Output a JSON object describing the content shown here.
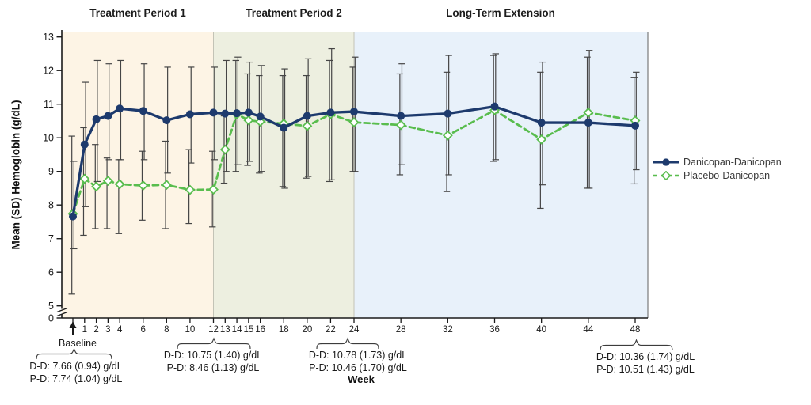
{
  "figure": {
    "regions": [
      {
        "label": "Treatment Period 1",
        "start_week": null,
        "end_week": 12,
        "fill": "#fdf4e5"
      },
      {
        "label": "Treatment Period 2",
        "start_week": 12,
        "end_week": 24,
        "fill": "#edefe0"
      },
      {
        "label": "Long-Term Extension",
        "start_week": 24,
        "end_week": null,
        "fill": "#e8f1fa"
      }
    ],
    "y_axis": {
      "title": "Mean (SD) Hemoglobin (g/dL)",
      "ticks": [
        0,
        5,
        6,
        7,
        8,
        9,
        10,
        11,
        12,
        13
      ],
      "has_break": true
    },
    "x_axis": {
      "title": "Week",
      "baseline_label": "Baseline"
    },
    "legend": {
      "items": [
        {
          "label": "Danicopan-Danicopan",
          "color": "#1d3a6d",
          "marker": "filled-circle",
          "line": "solid"
        },
        {
          "label": "Placebo-Danicopan",
          "color": "#59bd4e",
          "marker": "open-diamond",
          "line": "dashed"
        }
      ]
    },
    "annotations": [
      {
        "id": "baseline",
        "lines": [
          "D-D: 7.66 (0.94) g/dL",
          "P-D: 7.74 (1.04) g/dL"
        ]
      },
      {
        "id": "weeks-12-16",
        "lines": [
          "D-D: 10.75 (1.40) g/dL",
          "P-D: 8.46 (1.13) g/dL"
        ]
      },
      {
        "id": "week-24",
        "lines": [
          "D-D: 10.78 (1.73) g/dL",
          "P-D: 10.46 (1.70) g/dL"
        ]
      },
      {
        "id": "week-48",
        "lines": [
          "D-D: 10.36 (1.74) g/dL",
          "P-D: 10.51 (1.43) g/dL"
        ]
      }
    ]
  },
  "chart_data": {
    "type": "line",
    "xlabel": "Week",
    "ylabel": "Mean (SD) Hemoglobin (g/dL)",
    "ylim": [
      0,
      13
    ],
    "y_break_between": [
      0,
      5
    ],
    "x": [
      0,
      1,
      2,
      3,
      4,
      6,
      8,
      10,
      12,
      13,
      14,
      15,
      16,
      18,
      20,
      22,
      24,
      28,
      32,
      36,
      40,
      44,
      48
    ],
    "x_note": "0 = Baseline",
    "series": [
      {
        "name": "Danicopan-Danicopan",
        "values": [
          7.66,
          9.8,
          10.55,
          10.65,
          10.87,
          10.8,
          10.52,
          10.7,
          10.75,
          10.72,
          10.73,
          10.75,
          10.63,
          10.3,
          10.65,
          10.75,
          10.78,
          10.65,
          10.72,
          10.93,
          10.45,
          10.45,
          10.36
        ],
        "err_lo": [
          6.7,
          7.95,
          8.7,
          9.35,
          9.35,
          9.35,
          8.95,
          9.25,
          9.35,
          9.0,
          9.2,
          9.3,
          9.0,
          8.5,
          8.85,
          8.75,
          9.0,
          9.2,
          8.9,
          9.35,
          8.6,
          8.5,
          9.05
        ],
        "err_hi": [
          9.3,
          11.65,
          12.3,
          12.2,
          12.3,
          12.2,
          12.1,
          12.1,
          12.1,
          12.3,
          12.4,
          12.25,
          12.15,
          12.05,
          12.35,
          12.65,
          12.4,
          12.2,
          12.45,
          12.5,
          12.25,
          12.6,
          11.95
        ]
      },
      {
        "name": "Placebo-Danicopan",
        "values": [
          7.74,
          8.78,
          8.55,
          8.72,
          8.62,
          8.58,
          8.6,
          8.45,
          8.46,
          9.65,
          10.7,
          10.52,
          10.48,
          10.42,
          10.35,
          10.7,
          10.46,
          10.38,
          10.07,
          10.82,
          9.95,
          10.75,
          10.51
        ],
        "err_lo": [
          5.35,
          7.1,
          7.3,
          7.3,
          7.15,
          7.55,
          7.3,
          7.45,
          7.35,
          8.65,
          9.0,
          9.18,
          8.95,
          8.55,
          8.8,
          8.7,
          9.0,
          8.9,
          8.4,
          9.3,
          7.9,
          8.5,
          8.63
        ],
        "err_hi": [
          10.05,
          10.3,
          9.8,
          9.4,
          9.35,
          9.6,
          9.9,
          9.65,
          9.6,
          10.65,
          12.3,
          11.9,
          11.85,
          11.85,
          11.85,
          12.3,
          12.1,
          11.9,
          11.95,
          12.45,
          11.95,
          12.4,
          11.8
        ]
      }
    ],
    "legend_position": "right"
  }
}
